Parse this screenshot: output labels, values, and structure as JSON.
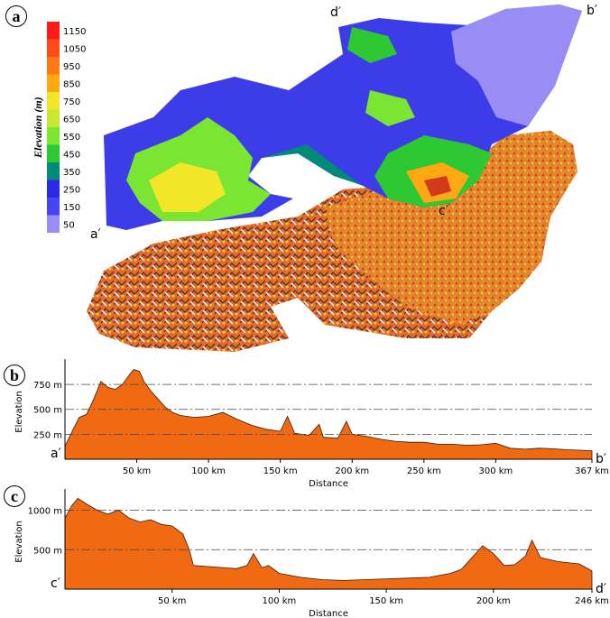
{
  "panels": {
    "a": "a",
    "b": "b",
    "c": "c"
  },
  "map": {
    "legend_title": "Elevation (m)",
    "legend": [
      {
        "label": "1150",
        "color": "#ff1a1a"
      },
      {
        "label": "1050",
        "color": "#ff4a1a"
      },
      {
        "label": "950",
        "color": "#ff7a14"
      },
      {
        "label": "850",
        "color": "#ffa814"
      },
      {
        "label": "750",
        "color": "#f2e628"
      },
      {
        "label": "650",
        "color": "#c8e632"
      },
      {
        "label": "550",
        "color": "#7ae632"
      },
      {
        "label": "450",
        "color": "#2ec832"
      },
      {
        "label": "350",
        "color": "#008a78"
      },
      {
        "label": "250",
        "color": "#2a2ae6"
      },
      {
        "label": "150",
        "color": "#4646f0"
      },
      {
        "label": "50",
        "color": "#9a8cf5"
      }
    ],
    "endpoints": {
      "a": "a′",
      "b": "b′",
      "c": "c′",
      "d": "d′"
    }
  },
  "chart_data": [
    {
      "type": "area",
      "panel": "b",
      "xlabel": "Distance",
      "ylabel": "Elevation",
      "xlim": [
        0,
        367
      ],
      "ylim": [
        0,
        950
      ],
      "xticks": [
        {
          "value": 50,
          "label": "50 km"
        },
        {
          "value": 100,
          "label": "100 km"
        },
        {
          "value": 150,
          "label": "150 km"
        },
        {
          "value": 200,
          "label": "200 km"
        },
        {
          "value": 250,
          "label": "250 km"
        },
        {
          "value": 300,
          "label": "300 km"
        },
        {
          "value": 367,
          "label": "367 km"
        }
      ],
      "yticks": [
        {
          "value": 250,
          "label": "250 m"
        },
        {
          "value": 500,
          "label": "500 m"
        },
        {
          "value": 750,
          "label": "750 m"
        }
      ],
      "start_label": "a′",
      "end_label": "b′",
      "color": "#f06a14",
      "x": [
        0,
        5,
        10,
        15,
        20,
        25,
        30,
        35,
        40,
        45,
        48,
        52,
        55,
        60,
        65,
        70,
        75,
        80,
        90,
        100,
        110,
        120,
        130,
        140,
        150,
        155,
        160,
        170,
        177,
        180,
        190,
        196,
        200,
        210,
        220,
        230,
        240,
        250,
        260,
        270,
        280,
        290,
        300,
        310,
        320,
        330,
        340,
        350,
        360,
        367
      ],
      "y": [
        130,
        280,
        420,
        450,
        600,
        780,
        720,
        700,
        750,
        850,
        900,
        880,
        780,
        680,
        600,
        520,
        470,
        440,
        420,
        430,
        470,
        400,
        340,
        300,
        280,
        430,
        260,
        240,
        350,
        220,
        210,
        380,
        250,
        230,
        200,
        180,
        170,
        170,
        150,
        150,
        140,
        145,
        160,
        110,
        100,
        110,
        105,
        95,
        90,
        85
      ]
    },
    {
      "type": "area",
      "panel": "c",
      "xlabel": "Distance",
      "ylabel": "Elevation",
      "xlim": [
        0,
        246
      ],
      "ylim": [
        0,
        1200
      ],
      "xticks": [
        {
          "value": 50,
          "label": "50 km"
        },
        {
          "value": 100,
          "label": "100 km"
        },
        {
          "value": 150,
          "label": "150 km"
        },
        {
          "value": 200,
          "label": "200 km"
        },
        {
          "value": 246,
          "label": "246 km"
        }
      ],
      "yticks": [
        {
          "value": 500,
          "label": "500 m"
        },
        {
          "value": 1000,
          "label": "1000 m"
        }
      ],
      "start_label": "c′",
      "end_label": "d′",
      "color": "#f06a14",
      "x": [
        0,
        3,
        6,
        10,
        15,
        20,
        25,
        30,
        35,
        40,
        45,
        50,
        55,
        58,
        60,
        65,
        70,
        80,
        85,
        88,
        92,
        95,
        100,
        110,
        120,
        130,
        140,
        150,
        160,
        170,
        180,
        185,
        190,
        195,
        200,
        205,
        210,
        215,
        218,
        222,
        230,
        240,
        246
      ],
      "y": [
        900,
        1050,
        1150,
        1080,
        1000,
        950,
        1000,
        900,
        850,
        880,
        820,
        800,
        700,
        500,
        300,
        290,
        280,
        260,
        300,
        450,
        270,
        300,
        200,
        150,
        120,
        110,
        120,
        130,
        140,
        150,
        200,
        250,
        400,
        550,
        450,
        300,
        310,
        420,
        620,
        400,
        350,
        320,
        230
      ]
    }
  ]
}
